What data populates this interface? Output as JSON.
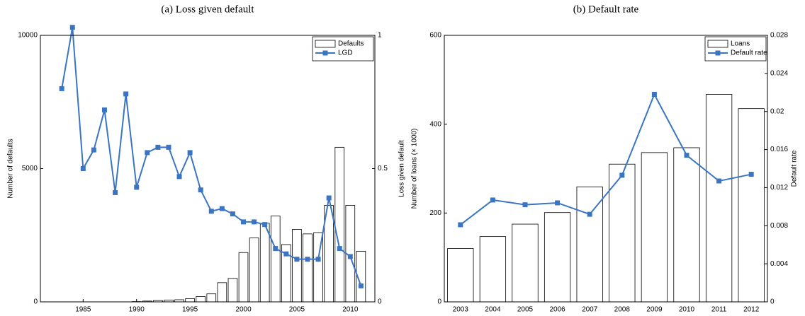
{
  "chart_data": [
    {
      "type": "combo",
      "title": "(a) Loss given default",
      "x": [
        1983,
        1984,
        1985,
        1986,
        1987,
        1988,
        1989,
        1990,
        1991,
        1992,
        1993,
        1994,
        1995,
        1996,
        1997,
        1998,
        1999,
        2000,
        2001,
        2002,
        2003,
        2004,
        2005,
        2006,
        2007,
        2008,
        2009,
        2010,
        2011
      ],
      "xlim": [
        1981,
        2012.3
      ],
      "xticks": [
        1985,
        1990,
        1995,
        2000,
        2005,
        2010
      ],
      "ylabel": "Number of defaults",
      "ylim": [
        0,
        10000
      ],
      "yticks": [
        0,
        5000,
        10000
      ],
      "y2label": "Loss given default",
      "y2lim": [
        0,
        1
      ],
      "y2ticks": [
        0,
        0.5,
        1
      ],
      "legend": "upper right",
      "series": [
        {
          "name": "Defaults",
          "kind": "bar",
          "color": "#ffffff",
          "values": [
            0,
            0,
            0,
            0,
            0,
            0,
            0,
            10,
            30,
            50,
            70,
            80,
            120,
            200,
            300,
            720,
            880,
            1850,
            2400,
            2950,
            3220,
            2150,
            2720,
            2550,
            2600,
            3620,
            5800,
            3620,
            1900
          ]
        },
        {
          "name": "LGD",
          "kind": "line",
          "axis": "y2",
          "color": "#3a75c4",
          "values": [
            0.8,
            1.03,
            0.5,
            0.57,
            0.72,
            0.41,
            0.78,
            0.43,
            0.56,
            0.58,
            0.58,
            0.47,
            0.56,
            0.42,
            0.34,
            0.35,
            0.33,
            0.3,
            0.3,
            0.29,
            0.2,
            0.18,
            0.16,
            0.16,
            0.16,
            0.39,
            0.2,
            0.17,
            0.06
          ]
        }
      ]
    },
    {
      "type": "combo",
      "title": "(b) Default rate",
      "categories": [
        "2003",
        "2004",
        "2005",
        "2006",
        "2007",
        "2008",
        "2009",
        "2010",
        "2011",
        "2012"
      ],
      "ylabel": "Number of loans (× 1000)",
      "ylim": [
        0,
        600
      ],
      "yticks": [
        0,
        200,
        400,
        600
      ],
      "y2label": "Default rate",
      "y2lim": [
        0,
        0.028
      ],
      "y2ticks": [
        0,
        0.004,
        0.008,
        0.012,
        0.016,
        0.02,
        0.024,
        0.028
      ],
      "legend": "upper right",
      "series": [
        {
          "name": "Loans",
          "kind": "bar",
          "color": "#ffffff",
          "values": [
            120,
            147,
            175,
            201,
            259,
            310,
            336,
            347,
            467,
            435
          ]
        },
        {
          "name": "Default rate",
          "kind": "line",
          "axis": "y2",
          "color": "#3a75c4",
          "values": [
            0.0081,
            0.0107,
            0.0102,
            0.0104,
            0.0092,
            0.0133,
            0.0218,
            0.0154,
            0.0127,
            0.0134
          ]
        }
      ]
    }
  ]
}
